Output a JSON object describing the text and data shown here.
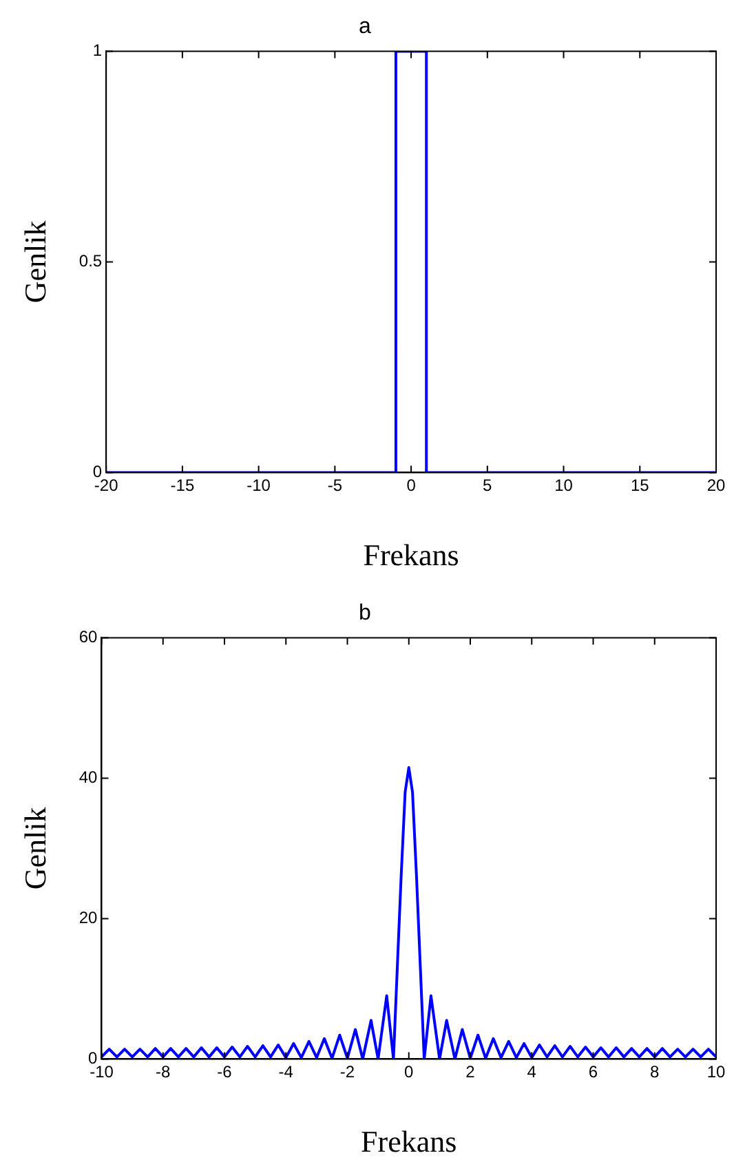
{
  "chart_data": [
    {
      "type": "line",
      "title": "a",
      "xlabel": "Frekans",
      "ylabel": "Genlik",
      "x": [
        -20,
        -1,
        -1,
        1,
        1,
        20
      ],
      "series": [
        {
          "color": "#0000ff",
          "values": [
            0,
            0,
            1,
            1,
            0,
            0
          ]
        }
      ],
      "xlim": [
        -20,
        20
      ],
      "xticks": [
        -20,
        -15,
        -10,
        -5,
        0,
        5,
        10,
        15,
        20
      ],
      "ylim": [
        0,
        1
      ],
      "yticks": [
        0,
        0.5,
        1
      ],
      "grid": false,
      "legend": false
    },
    {
      "type": "line",
      "title": "b",
      "xlabel": "Frekans",
      "ylabel": "Genlik",
      "x": [
        -10,
        -9.75,
        -9.5,
        -9.25,
        -9,
        -8.75,
        -8.5,
        -8.25,
        -8,
        -7.75,
        -7.5,
        -7.25,
        -7,
        -6.75,
        -6.5,
        -6.25,
        -6,
        -5.75,
        -5.5,
        -5.25,
        -5,
        -4.75,
        -4.5,
        -4.25,
        -4,
        -3.75,
        -3.5,
        -3.25,
        -3,
        -2.75,
        -2.5,
        -2.25,
        -2,
        -1.74,
        -1.5,
        -1.23,
        -1,
        -0.72,
        -0.5,
        -0.38,
        -0.25,
        -0.12,
        0,
        0.12,
        0.25,
        0.38,
        0.5,
        0.72,
        1,
        1.23,
        1.5,
        1.74,
        2,
        2.25,
        2.5,
        2.75,
        3,
        3.25,
        3.5,
        3.75,
        4,
        4.25,
        4.5,
        4.75,
        5,
        5.25,
        5.5,
        5.75,
        6,
        6.25,
        6.5,
        6.75,
        7,
        7.25,
        7.5,
        7.75,
        8,
        8.25,
        8.5,
        8.75,
        9,
        9.25,
        9.5,
        9.75,
        10
      ],
      "series": [
        {
          "color": "#0000ff",
          "values": [
            0.3,
            1.4,
            0.3,
            1.4,
            0.3,
            1.4,
            0.3,
            1.5,
            0.3,
            1.5,
            0.3,
            1.5,
            0.3,
            1.6,
            0.3,
            1.6,
            0.3,
            1.7,
            0.3,
            1.8,
            0.3,
            1.9,
            0.3,
            2.0,
            0.2,
            2.2,
            0.2,
            2.5,
            0.2,
            2.9,
            0.1,
            3.4,
            0.1,
            4.2,
            0,
            5.5,
            0,
            9,
            0,
            12.5,
            26,
            38,
            41.5,
            38,
            26,
            12.5,
            0,
            9,
            0,
            5.5,
            0,
            4.2,
            0.1,
            3.4,
            0.1,
            2.9,
            0.2,
            2.5,
            0.2,
            2.2,
            0.2,
            2.0,
            0.3,
            1.9,
            0.3,
            1.8,
            0.3,
            1.7,
            0.3,
            1.6,
            0.3,
            1.6,
            0.3,
            1.5,
            0.3,
            1.5,
            0.3,
            1.5,
            0.3,
            1.4,
            0.3,
            1.4,
            0.3,
            1.4,
            0.3
          ]
        }
      ],
      "xlim": [
        -10,
        10
      ],
      "xticks": [
        -10,
        -8,
        -6,
        -4,
        -2,
        0,
        2,
        4,
        6,
        8,
        10
      ],
      "ylim": [
        0,
        60
      ],
      "yticks": [
        0,
        20,
        40,
        60
      ],
      "grid": false,
      "legend": false
    }
  ]
}
